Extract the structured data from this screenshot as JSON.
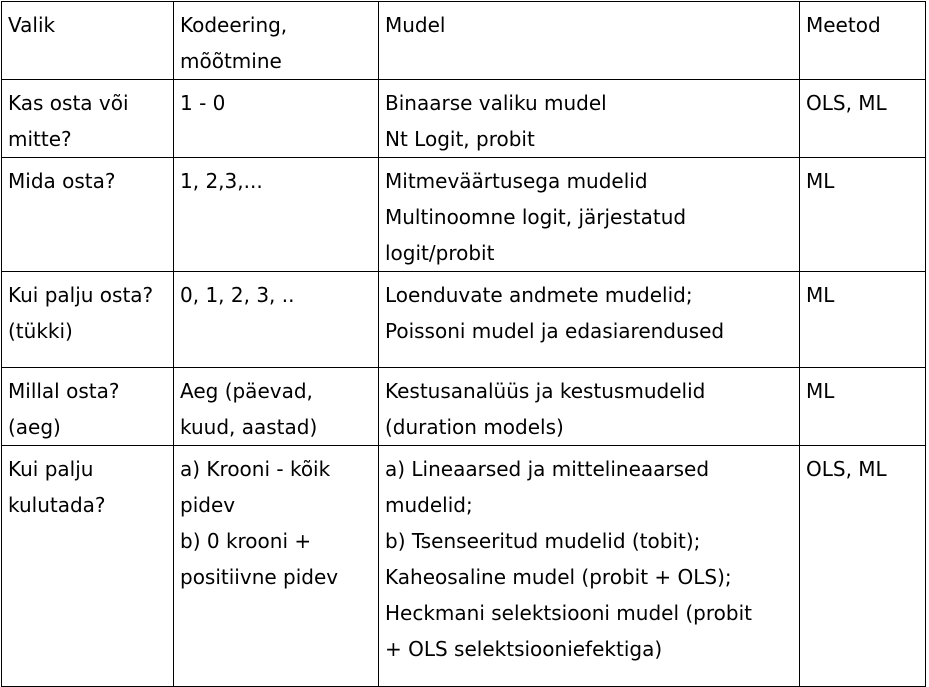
{
  "header": {
    "col1": [
      "Valik"
    ],
    "col2": [
      "Kodeering,",
      "mõõtmine"
    ],
    "col3": [
      "Mudel"
    ],
    "col4": [
      "Meetod"
    ]
  },
  "rows": [
    {
      "choice": [
        "Kas osta või",
        "mitte?"
      ],
      "coding": [
        "1 - 0"
      ],
      "model": [
        "Binaarse valiku mudel",
        "Nt Logit, probit"
      ],
      "method": [
        "OLS, ML"
      ]
    },
    {
      "choice": [
        "Mida osta?"
      ],
      "coding": [
        "1, 2,3,..."
      ],
      "model": [
        "Mitmeväärtusega mudelid",
        "Multinoomne logit, järjestatud",
        "logit/probit"
      ],
      "method": [
        "ML"
      ]
    },
    {
      "choice": [
        "Kui palju osta?",
        "(tükki)"
      ],
      "coding": [
        "0, 1, 2, 3, .."
      ],
      "model": [
        "Loenduvate andmete mudelid;",
        "Poissoni mudel ja edasiarendused"
      ],
      "method": [
        "ML"
      ]
    },
    {
      "choice": [
        "Millal osta?",
        "(aeg)"
      ],
      "coding": [
        "Aeg (päevad,",
        "kuud, aastad)"
      ],
      "model": [
        "Kestusanalüüs ja kestusmudelid",
        "(duration models)"
      ],
      "method": [
        "ML"
      ]
    },
    {
      "choice": [
        "Kui palju",
        "kulutada?"
      ],
      "coding": [
        "a) Krooni - kõik",
        "pidev",
        "b) 0 krooni +",
        "positiivne pidev"
      ],
      "model": [
        "a) Lineaarsed ja mittelineaarsed",
        "mudelid;",
        "b) Tsenseeritud mudelid (tobit);",
        "Kaheosaline mudel (probit + OLS);",
        "Heckmani selektsiooni mudel (probit",
        "+ OLS selektsiooniefektiga)"
      ],
      "method": [
        "OLS, ML"
      ]
    }
  ]
}
